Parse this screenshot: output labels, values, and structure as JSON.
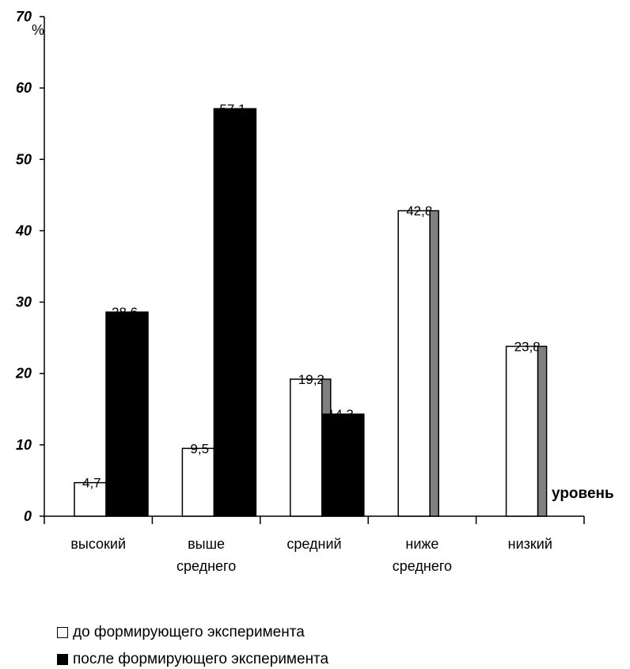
{
  "chart_data": {
    "type": "bar",
    "title": "",
    "xlabel": "уровень",
    "ylabel": "%",
    "ylim": [
      0,
      70
    ],
    "yticks": [
      0,
      10,
      20,
      30,
      40,
      50,
      60,
      70
    ],
    "grid": false,
    "legend_position": "bottom-left",
    "categories": [
      [
        "высокий"
      ],
      [
        "выше",
        "среднего"
      ],
      [
        "средний"
      ],
      [
        "ниже",
        "среднего"
      ],
      [
        "низкий"
      ]
    ],
    "series": [
      {
        "name": "до формирующего эксперимента",
        "values": [
          4.7,
          9.5,
          19.2,
          42.8,
          23.8
        ],
        "labels": [
          "4,7",
          "9,5",
          "19,2",
          "42,8",
          "23,8"
        ],
        "fill": "#ffffff"
      },
      {
        "name": "после формирующего эксперимента",
        "values": [
          28.6,
          57.1,
          14.3,
          0,
          0
        ],
        "labels": [
          "28,6",
          "57,1",
          "14,3",
          "",
          ""
        ],
        "fill": "#000000"
      }
    ],
    "shadow_color": "#808080"
  }
}
